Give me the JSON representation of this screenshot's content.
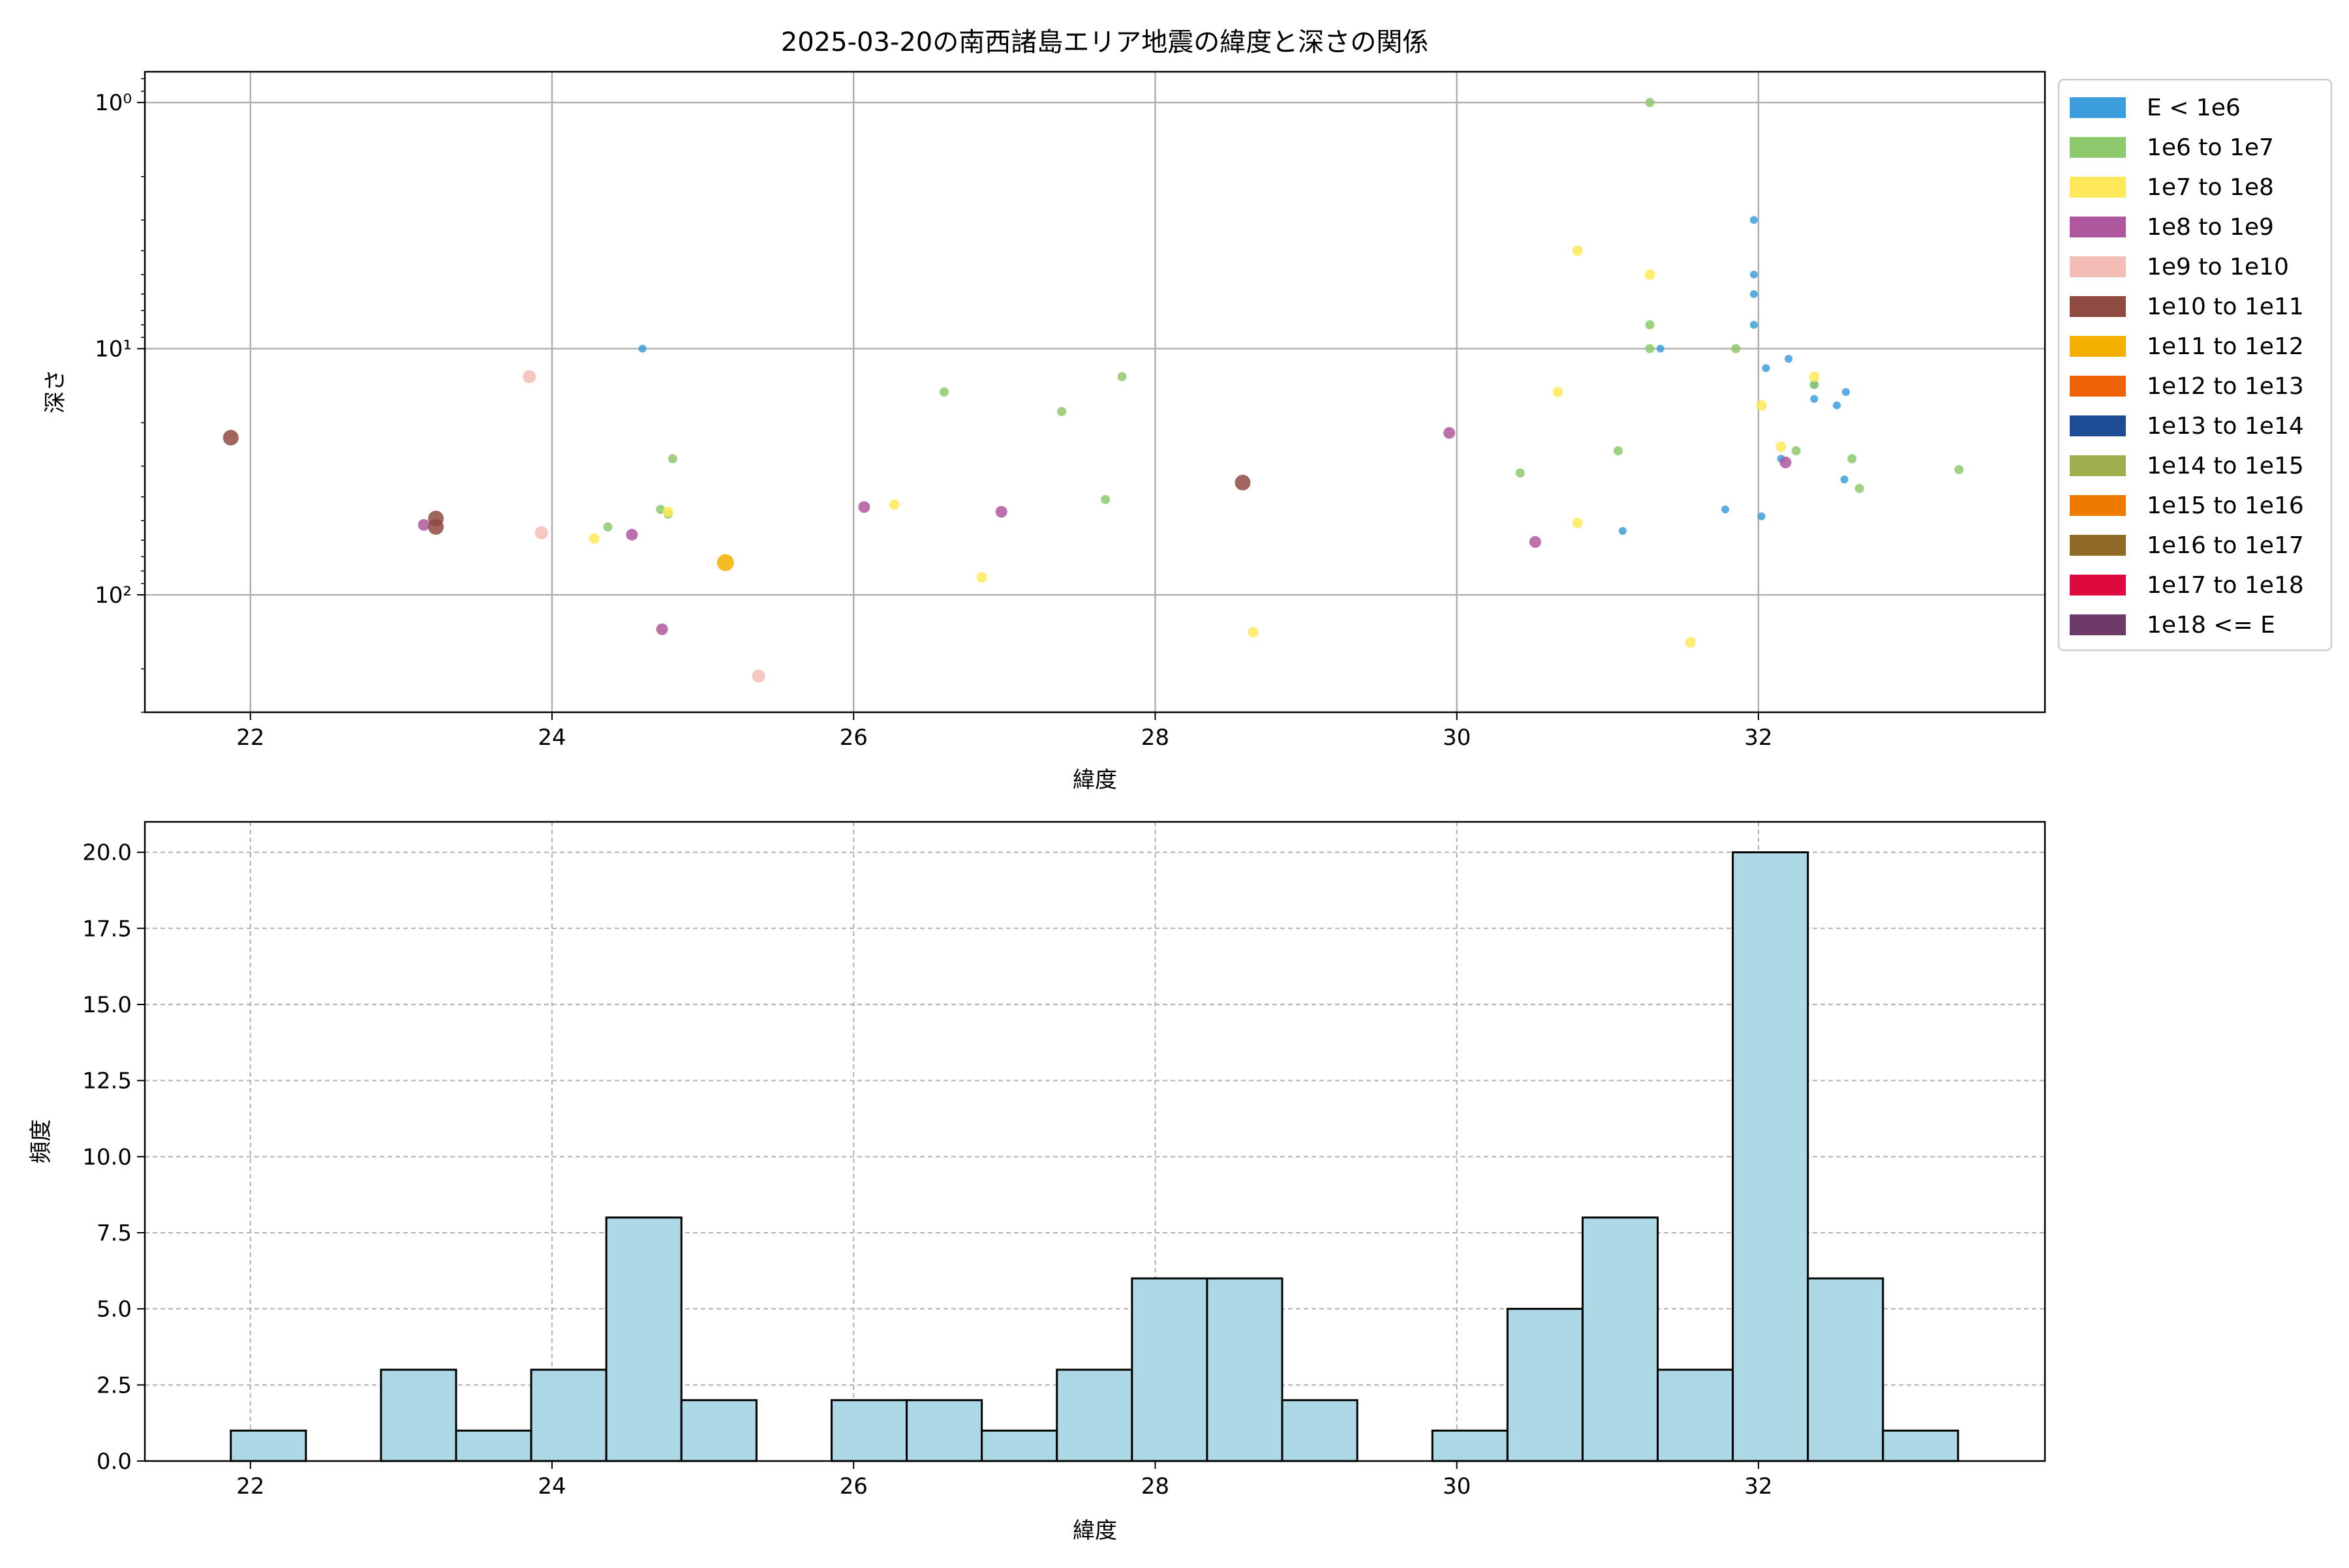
{
  "chart_data": [
    {
      "type": "scatter",
      "title": "2025-03-20の南西諸島エリア地震の緯度と深さの関係",
      "xlabel": "緯度",
      "ylabel": "深さ",
      "xlim": [
        21.3,
        33.9
      ],
      "x_ticks": [
        22,
        24,
        26,
        28,
        30,
        32
      ],
      "y_scale": "log",
      "y_inverted": true,
      "ylim": [
        300,
        0.75
      ],
      "y_ticks": [
        {
          "value": 1,
          "label": "10⁰"
        },
        {
          "value": 10,
          "label": "10¹"
        },
        {
          "value": 100,
          "label": "10²"
        }
      ],
      "grid": true,
      "legend": {
        "placement": "outside-right",
        "entries": [
          {
            "label": "E < 1e6",
            "color": "#3c9fdb"
          },
          {
            "label": "1e6 to 1e7",
            "color": "#8fc96d"
          },
          {
            "label": "1e7 to 1e8",
            "color": "#ffe95a"
          },
          {
            "label": "1e8 to 1e9",
            "color": "#b0589f"
          },
          {
            "label": "1e9 to 1e10",
            "color": "#f4bdb5"
          },
          {
            "label": "1e10 to 1e11",
            "color": "#8f4a42"
          },
          {
            "label": "1e11 to 1e12",
            "color": "#f4b000"
          },
          {
            "label": "1e12 to 1e13",
            "color": "#ef6308"
          },
          {
            "label": "1e13 to 1e14",
            "color": "#1d4c94"
          },
          {
            "label": "1e14 to 1e15",
            "color": "#9caf4c"
          },
          {
            "label": "1e15 to 1e16",
            "color": "#ef7a00"
          },
          {
            "label": "1e16 to 1e17",
            "color": "#8f6a26"
          },
          {
            "label": "1e17 to 1e18",
            "color": "#de0a3e"
          },
          {
            "label": "1e18 <= E",
            "color": "#6d3a6a"
          }
        ]
      },
      "series": [
        {
          "class": "E < 1e6",
          "points": [
            [
              24.6,
              10
            ],
            [
              31.35,
              10
            ],
            [
              31.97,
              3
            ],
            [
              31.97,
              5
            ],
            [
              31.97,
              6
            ],
            [
              31.97,
              8
            ],
            [
              32.05,
              12
            ],
            [
              32.2,
              11
            ],
            [
              32.37,
              14
            ],
            [
              32.37,
              16
            ],
            [
              32.52,
              17
            ],
            [
              32.58,
              15
            ],
            [
              32.15,
              28
            ],
            [
              31.78,
              45
            ],
            [
              32.02,
              48
            ],
            [
              32.57,
              34
            ],
            [
              31.1,
              55
            ]
          ]
        },
        {
          "class": "1e6 to 1e7",
          "points": [
            [
              31.28,
              1
            ],
            [
              31.28,
              8
            ],
            [
              31.28,
              10
            ],
            [
              31.85,
              10
            ],
            [
              30.42,
              32
            ],
            [
              31.07,
              26
            ],
            [
              32.25,
              26
            ],
            [
              32.62,
              28
            ],
            [
              32.67,
              37
            ],
            [
              33.33,
              31
            ],
            [
              32.37,
              14
            ],
            [
              26.6,
              15
            ],
            [
              27.38,
              18
            ],
            [
              27.78,
              13
            ],
            [
              27.67,
              41
            ],
            [
              24.8,
              28
            ],
            [
              24.72,
              45
            ],
            [
              24.77,
              47
            ],
            [
              24.37,
              53
            ]
          ]
        },
        {
          "class": "1e7 to 1e8",
          "points": [
            [
              30.8,
              4
            ],
            [
              31.28,
              5
            ],
            [
              30.67,
              15
            ],
            [
              32.02,
              17
            ],
            [
              32.37,
              13
            ],
            [
              32.15,
              25
            ],
            [
              30.8,
              51
            ],
            [
              31.55,
              156
            ],
            [
              28.65,
              142
            ],
            [
              26.85,
              85
            ],
            [
              26.27,
              43
            ],
            [
              24.77,
              46
            ],
            [
              24.28,
              59
            ]
          ]
        },
        {
          "class": "1e8 to 1e9",
          "points": [
            [
              29.95,
              22
            ],
            [
              32.18,
              29
            ],
            [
              30.52,
              61
            ],
            [
              26.98,
              46
            ],
            [
              26.07,
              44
            ],
            [
              24.53,
              57
            ],
            [
              24.73,
              138
            ],
            [
              23.15,
              52
            ]
          ]
        },
        {
          "class": "1e9 to 1e10",
          "points": [
            [
              23.85,
              13
            ],
            [
              23.93,
              56
            ],
            [
              25.37,
              214
            ]
          ]
        },
        {
          "class": "1e10 to 1e11",
          "points": [
            [
              21.87,
              23
            ],
            [
              28.58,
              35
            ],
            [
              23.23,
              49
            ],
            [
              23.23,
              53
            ]
          ]
        },
        {
          "class": "1e11 to 1e12",
          "points": [
            [
              25.15,
              74
            ]
          ]
        }
      ]
    },
    {
      "type": "bar",
      "xlabel": "緯度",
      "ylabel": "頻度",
      "xlim": [
        21.3,
        33.9
      ],
      "ylim": [
        0,
        21
      ],
      "x_ticks": [
        22,
        24,
        26,
        28,
        30,
        32
      ],
      "y_ticks": [
        0.0,
        2.5,
        5.0,
        7.5,
        10.0,
        12.5,
        15.0,
        17.5,
        20.0
      ],
      "grid": true,
      "bar_color": "#add8e6",
      "bin_start": 21.87,
      "bin_width": 0.498,
      "values": [
        1,
        0,
        3,
        1,
        3,
        8,
        2,
        0,
        2,
        2,
        1,
        3,
        6,
        6,
        2,
        0,
        1,
        5,
        8,
        3,
        20,
        6,
        1
      ]
    }
  ]
}
